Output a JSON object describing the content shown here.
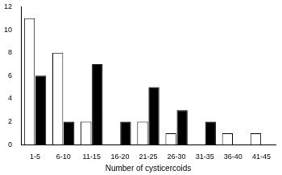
{
  "chart_data": {
    "type": "bar",
    "x_label": "Number of cysticercoids",
    "categories": [
      "1-5",
      "6-10",
      "11-15",
      "16-20",
      "21-25",
      "26-30",
      "31-35",
      "36-40",
      "41-45"
    ],
    "series": [
      {
        "color": "#ffffff",
        "values": [
          11,
          8,
          2,
          0,
          2,
          1,
          0,
          1,
          1
        ]
      },
      {
        "color": "#000000",
        "values": [
          6,
          2,
          7,
          2,
          5,
          3,
          2,
          0,
          0
        ]
      }
    ],
    "ylim": [
      0,
      12
    ],
    "yticks": [
      0,
      2,
      4,
      6,
      8,
      10,
      12
    ],
    "grid": false
  }
}
